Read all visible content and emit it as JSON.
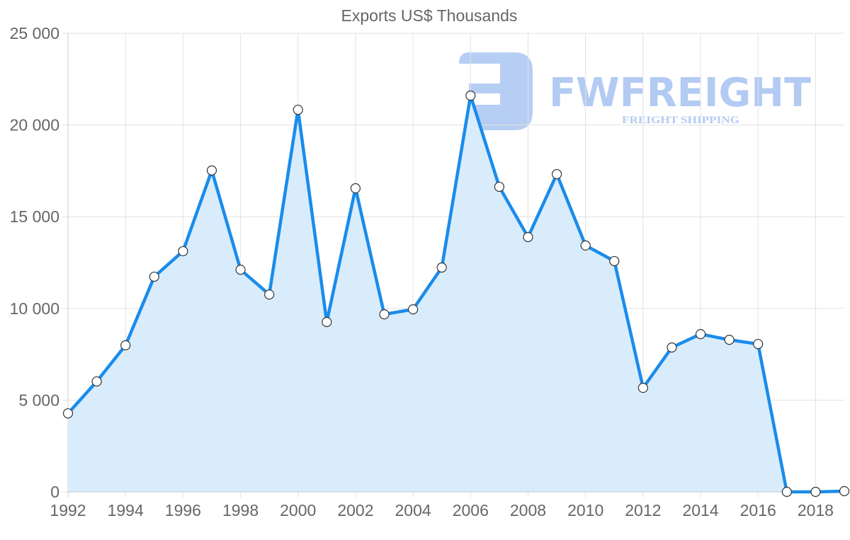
{
  "chart_data": {
    "type": "area",
    "title": "Exports US$ Thousands",
    "xlabel": "",
    "ylabel": "",
    "ylim": [
      0,
      25000
    ],
    "yticks": [
      0,
      5000,
      10000,
      15000,
      20000,
      25000
    ],
    "ytick_labels": [
      "0",
      "5 000",
      "10 000",
      "15 000",
      "20 000",
      "25 000"
    ],
    "xtick_labels": [
      "1992",
      "1994",
      "1996",
      "1998",
      "2000",
      "2002",
      "2004",
      "2006",
      "2008",
      "2010",
      "2012",
      "2014",
      "2016",
      "2018"
    ],
    "grid": true,
    "legend": null,
    "x": [
      1992,
      1993,
      1994,
      1995,
      1996,
      1997,
      1998,
      1999,
      2000,
      2001,
      2002,
      2003,
      2004,
      2005,
      2006,
      2007,
      2008,
      2009,
      2010,
      2011,
      2012,
      2013,
      2014,
      2015,
      2016,
      2017,
      2018,
      2019
    ],
    "series": [
      {
        "name": "Exports",
        "values": [
          4280,
          6020,
          7990,
          11730,
          13120,
          17520,
          12110,
          10760,
          20830,
          9260,
          16550,
          9680,
          9950,
          12230,
          21600,
          16630,
          13890,
          17320,
          13430,
          12580,
          5670,
          7870,
          8600,
          8290,
          8060,
          0,
          0,
          40
        ],
        "line_color": "#1a8ceb",
        "fill_color": "#d9ecfc",
        "marker_fill": "#ffffff",
        "marker_stroke": "#333333"
      }
    ]
  },
  "watermark": {
    "brand": "FWFREIGHT",
    "tagline": "FREIGHT SHIPPING",
    "color": "#b3cbf3"
  }
}
